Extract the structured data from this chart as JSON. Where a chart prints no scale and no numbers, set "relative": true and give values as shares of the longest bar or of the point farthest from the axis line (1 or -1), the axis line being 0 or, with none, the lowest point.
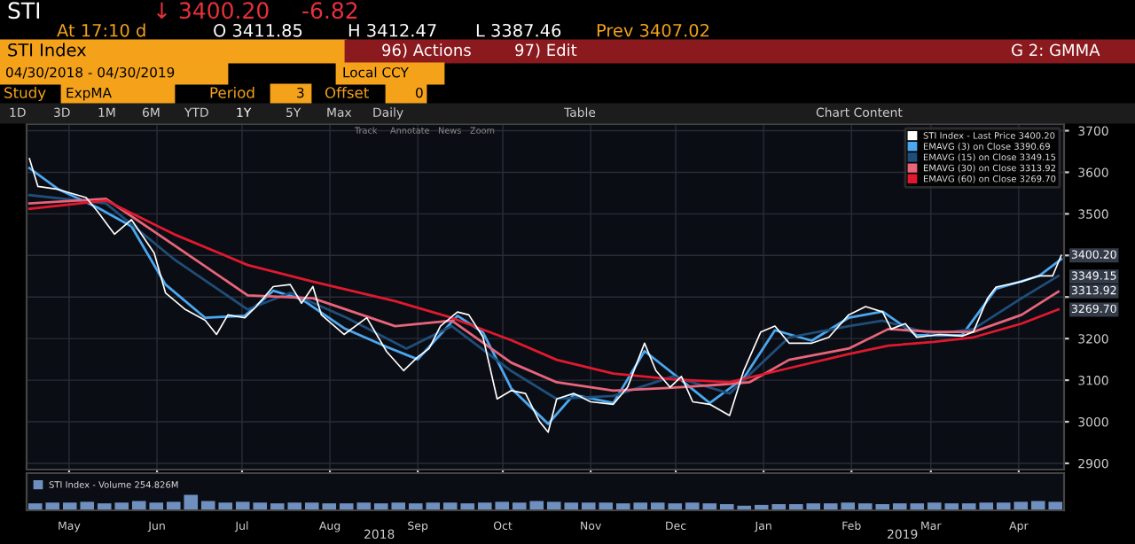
{
  "chart_data": [
    {
      "type": "line",
      "title": "STI Index",
      "subtitle": "04/30/2018 - 04/30/2019",
      "xlim": [
        "2018-04-30",
        "2019-05-01"
      ],
      "xticks": [
        {
          "value": "2018-05-15",
          "label": "May"
        },
        {
          "value": "2018-06-15",
          "label": "Jun"
        },
        {
          "value": "2018-07-15",
          "label": "Jul"
        },
        {
          "value": "2018-08-15",
          "label": "Aug"
        },
        {
          "value": "2018-09-15",
          "label": "Sep"
        },
        {
          "value": "2018-10-15",
          "label": "Oct"
        },
        {
          "value": "2018-11-15",
          "label": "Nov"
        },
        {
          "value": "2018-12-15",
          "label": "Dec"
        },
        {
          "value": "2019-01-15",
          "label": "Jan"
        },
        {
          "value": "2019-02-15",
          "label": "Feb"
        },
        {
          "value": "2019-03-15",
          "label": "Mar"
        },
        {
          "value": "2019-04-15",
          "label": "Apr"
        }
      ],
      "ylim": [
        2885,
        3716
      ],
      "yticks": [
        2900,
        3000,
        3100,
        3200,
        {
          "value": 3300,
          "label": null
        },
        {
          "value": 3400,
          "label": null
        },
        3500,
        3600,
        3700
      ],
      "grid": true,
      "legend": "top right",
      "line_style": "solid",
      "series": [
        {
          "name": "STI Index - Last Price 3400.20",
          "color": "#ffffff",
          "x": [
            "2018-05-01",
            "2018-05-04",
            "2018-05-11",
            "2018-05-21",
            "2018-05-25",
            "2018-05-31",
            "2018-06-06",
            "2018-06-14",
            "2018-06-18",
            "2018-06-25",
            "2018-07-02",
            "2018-07-06",
            "2018-07-10",
            "2018-07-16",
            "2018-07-20",
            "2018-07-26",
            "2018-08-01",
            "2018-08-05",
            "2018-08-09",
            "2018-08-12",
            "2018-08-20",
            "2018-08-28",
            "2018-09-04",
            "2018-09-10",
            "2018-09-15",
            "2018-09-19",
            "2018-09-23",
            "2018-09-29",
            "2018-10-03",
            "2018-10-08",
            "2018-10-13",
            "2018-10-18",
            "2018-10-23",
            "2018-10-28",
            "2018-10-31",
            "2018-11-03",
            "2018-11-09",
            "2018-11-15",
            "2018-11-23",
            "2018-11-28",
            "2018-12-04",
            "2018-12-08",
            "2018-12-13",
            "2018-12-17",
            "2018-12-21",
            "2018-12-27",
            "2019-01-03",
            "2019-01-08",
            "2019-01-14",
            "2019-01-19",
            "2019-01-24",
            "2019-02-01",
            "2019-02-07",
            "2019-02-14",
            "2019-02-20",
            "2019-02-26",
            "2019-03-01",
            "2019-03-06",
            "2019-03-10",
            "2019-03-18",
            "2019-03-26",
            "2019-03-30",
            "2019-04-04",
            "2019-04-07",
            "2019-04-16",
            "2019-04-22",
            "2019-04-27",
            "2019-04-30"
          ],
          "values": [
            3633,
            3566,
            3559,
            3539,
            3506,
            3451,
            3486,
            3406,
            3310,
            3270,
            3244,
            3210,
            3257,
            3250,
            3277,
            3325,
            3330,
            3285,
            3325,
            3257,
            3210,
            3250,
            3169,
            3123,
            3156,
            3176,
            3230,
            3264,
            3257,
            3204,
            3055,
            3075,
            3068,
            3000,
            2975,
            3055,
            3068,
            3048,
            3042,
            3083,
            3189,
            3123,
            3083,
            3109,
            3048,
            3042,
            3015,
            3123,
            3216,
            3230,
            3189,
            3189,
            3203,
            3257,
            3277,
            3264,
            3223,
            3236,
            3203,
            3210,
            3206,
            3216,
            3297,
            3324,
            3337,
            3351,
            3351,
            3400
          ]
        },
        {
          "name": "EMAVG (3) on Close 3390.69",
          "color": "#4aa8f0",
          "x": [
            "2018-05-01",
            "2018-05-11",
            "2018-05-25",
            "2018-06-06",
            "2018-06-18",
            "2018-07-02",
            "2018-07-16",
            "2018-07-26",
            "2018-08-05",
            "2018-08-20",
            "2018-09-04",
            "2018-09-15",
            "2018-09-29",
            "2018-10-08",
            "2018-10-18",
            "2018-10-31",
            "2018-11-09",
            "2018-11-23",
            "2018-12-04",
            "2018-12-17",
            "2018-12-27",
            "2019-01-08",
            "2019-01-19",
            "2019-02-01",
            "2019-02-14",
            "2019-02-26",
            "2019-03-10",
            "2019-03-26",
            "2019-04-07",
            "2019-04-22",
            "2019-04-30"
          ],
          "values": [
            3610,
            3560,
            3515,
            3470,
            3330,
            3250,
            3255,
            3315,
            3295,
            3225,
            3180,
            3150,
            3255,
            3215,
            3080,
            2995,
            3065,
            3045,
            3170,
            3100,
            3045,
            3105,
            3220,
            3195,
            3250,
            3265,
            3208,
            3208,
            3320,
            3350,
            3391
          ]
        },
        {
          "name": "EMAVG (15) on Close 3349.15",
          "color": "#1f4e79",
          "x": [
            "2018-05-01",
            "2018-05-28",
            "2018-06-21",
            "2018-07-17",
            "2018-08-01",
            "2018-08-21",
            "2018-09-11",
            "2018-09-27",
            "2018-10-18",
            "2018-11-03",
            "2018-11-23",
            "2018-12-14",
            "2019-01-03",
            "2019-01-24",
            "2019-02-14",
            "2019-02-26",
            "2019-03-16",
            "2019-03-30",
            "2019-04-16",
            "2019-04-29"
          ],
          "values": [
            3545,
            3525,
            3391,
            3270,
            3310,
            3250,
            3176,
            3230,
            3122,
            3055,
            3062,
            3109,
            3068,
            3203,
            3230,
            3243,
            3210,
            3223,
            3297,
            3351
          ]
        },
        {
          "name": "EMAVG (30) on Close 3313.92",
          "color": "#e8657a",
          "x": [
            "2018-05-01",
            "2018-05-28",
            "2018-06-21",
            "2018-07-17",
            "2018-08-09",
            "2018-09-07",
            "2018-09-27",
            "2018-10-18",
            "2018-11-03",
            "2018-11-23",
            "2018-12-14",
            "2018-12-30",
            "2019-01-10",
            "2019-01-24",
            "2019-02-14",
            "2019-02-28",
            "2019-03-16",
            "2019-03-30",
            "2019-04-16",
            "2019-04-29"
          ],
          "values": [
            3525,
            3536,
            3425,
            3304,
            3297,
            3230,
            3243,
            3142,
            3095,
            3075,
            3082,
            3089,
            3095,
            3149,
            3176,
            3223,
            3216,
            3216,
            3257,
            3313
          ]
        },
        {
          "name": "EMAVG (60) on Close 3269.70",
          "color": "#e0192f",
          "x": [
            "2018-05-01",
            "2018-05-28",
            "2018-06-21",
            "2018-07-17",
            "2018-08-09",
            "2018-09-07",
            "2018-09-27",
            "2018-10-18",
            "2018-11-03",
            "2018-11-23",
            "2018-12-14",
            "2019-01-03",
            "2019-01-24",
            "2019-02-14",
            "2019-02-28",
            "2019-03-16",
            "2019-03-30",
            "2019-04-16",
            "2019-04-29"
          ],
          "values": [
            3512,
            3532,
            3451,
            3377,
            3337,
            3290,
            3250,
            3196,
            3149,
            3116,
            3102,
            3095,
            3129,
            3163,
            3183,
            3192,
            3203,
            3236,
            3270
          ]
        }
      ],
      "annotations": [
        "STI",
        "↓ 3400.20",
        "-6.82",
        "At 17:10 d",
        "O 3411.85",
        "H 3412.47",
        "L 3387.46",
        "Prev 3407.02",
        "96) Actions",
        "97) Edit",
        "G 2: GMMA",
        "Local CCY",
        "Study",
        "ExpMA",
        "Period",
        "3",
        "Offset",
        "0",
        "1D",
        "3D",
        "1M",
        "6M",
        "YTD",
        "1Y",
        "5Y",
        "Max",
        "Daily",
        "Table",
        "Chart Content",
        "Track",
        "Annotate",
        "News",
        "Zoom",
        "2018",
        "2019",
        {
          "text": "3400.20",
          "x": "2019-04-30",
          "y": 3400.2
        },
        {
          "text": "3349.15",
          "x": "2019-04-30",
          "y": 3349.15
        },
        {
          "text": "3313.92",
          "x": "2019-04-30",
          "y": 3313.92
        },
        {
          "text": "3269.70",
          "x": "2019-04-30",
          "y": 3269.7
        }
      ]
    },
    {
      "type": "bar",
      "relative": true,
      "legend": "top left",
      "categories": [
        null,
        null,
        null,
        null,
        null,
        null,
        null,
        null,
        null,
        null,
        null,
        null,
        null,
        null,
        null,
        null,
        null,
        null,
        null,
        null,
        null,
        null,
        null,
        null,
        null,
        null,
        null,
        null,
        null,
        null,
        null,
        null,
        null,
        null,
        null,
        null,
        null,
        null,
        null,
        null,
        null,
        null,
        null,
        null,
        null,
        null,
        null,
        null,
        null,
        null,
        null,
        null,
        null,
        null,
        null,
        null,
        null,
        null,
        null,
        null
      ],
      "series": [
        {
          "name": "STI Index - Volume 254.826M",
          "color": "#6f8fbf",
          "values": [
            0.45,
            0.5,
            0.5,
            0.55,
            0.45,
            0.5,
            0.6,
            0.5,
            0.55,
            1.0,
            0.6,
            0.5,
            0.55,
            0.5,
            0.45,
            0.5,
            0.5,
            0.45,
            0.45,
            0.5,
            0.45,
            0.5,
            0.45,
            0.5,
            0.5,
            0.45,
            0.5,
            0.55,
            0.5,
            0.6,
            0.55,
            0.5,
            0.5,
            0.5,
            0.45,
            0.5,
            0.5,
            0.45,
            0.5,
            0.45,
            0.4,
            0.3,
            0.35,
            0.4,
            0.4,
            0.45,
            0.45,
            0.5,
            0.45,
            0.4,
            0.45,
            0.45,
            0.5,
            0.45,
            0.45,
            0.5,
            0.5,
            0.55,
            0.6,
            0.55
          ]
        }
      ]
    }
  ]
}
